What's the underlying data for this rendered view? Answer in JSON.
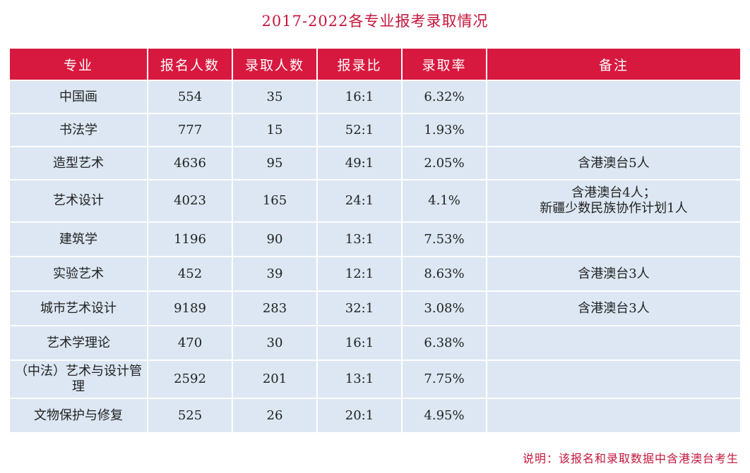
{
  "title": "2017-2022各专业报考录取情况",
  "headers": [
    "专业",
    "报名人数",
    "录取人数",
    "报录比",
    "录取率",
    "备注"
  ],
  "rows": [
    {
      "major": "中国画",
      "applicants": "554",
      "admitted": "35",
      "ratio": "16:1",
      "rate": "6.32%",
      "remarks": []
    },
    {
      "major": "书法学",
      "applicants": "777",
      "admitted": "15",
      "ratio": "52:1",
      "rate": "1.93%",
      "remarks": []
    },
    {
      "major": "造型艺术",
      "applicants": "4636",
      "admitted": "95",
      "ratio": "49:1",
      "rate": "2.05%",
      "remarks": [
        "含港澳台5人"
      ]
    },
    {
      "major": "艺术设计",
      "applicants": "4023",
      "admitted": "165",
      "ratio": "24:1",
      "rate": "4.1%",
      "remarks": [
        "含港澳台4人；",
        "新疆少数民族协作计划1人"
      ]
    },
    {
      "major": "建筑学",
      "applicants": "1196",
      "admitted": "90",
      "ratio": "13:1",
      "rate": "7.53%",
      "remarks": []
    },
    {
      "major": "实验艺术",
      "applicants": "452",
      "admitted": "39",
      "ratio": "12:1",
      "rate": "8.63%",
      "remarks": [
        "含港澳台3人"
      ]
    },
    {
      "major": "城市艺术设计",
      "applicants": "9189",
      "admitted": "283",
      "ratio": "32:1",
      "rate": "3.08%",
      "remarks": [
        "含港澳台3人"
      ]
    },
    {
      "major": "艺术学理论",
      "applicants": "470",
      "admitted": "30",
      "ratio": "16:1",
      "rate": "6.38%",
      "remarks": []
    },
    {
      "major": "（中法）艺术与设计管理",
      "applicants": "2592",
      "admitted": "201",
      "ratio": "13:1",
      "rate": "7.75%",
      "remarks": []
    },
    {
      "major": "文物保护与修复",
      "applicants": "525",
      "admitted": "26",
      "ratio": "20:1",
      "rate": "4.95%",
      "remarks": []
    }
  ],
  "note": "说明：该报名和录取数据中含港澳台考生",
  "colors": {
    "header_bg": "#d8193f",
    "cell_bg": "#dce7f3",
    "title_text": "#c4163b"
  }
}
